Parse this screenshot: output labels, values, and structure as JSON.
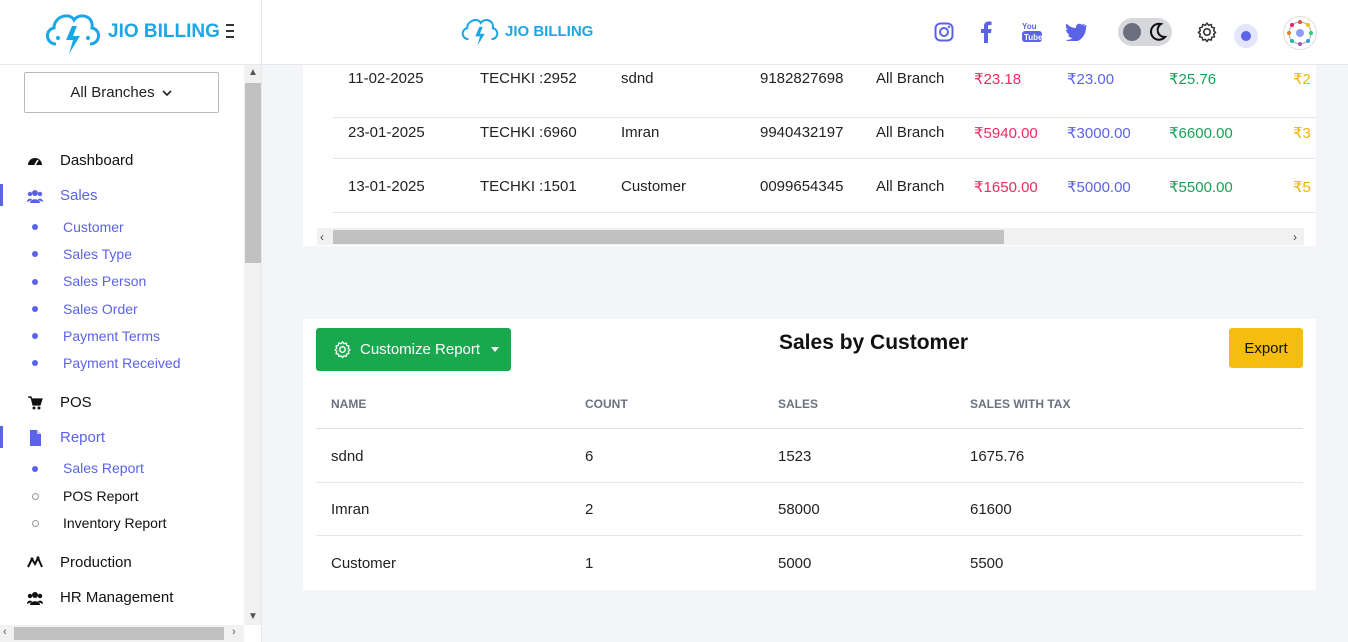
{
  "brand": {
    "name": "JIO BILLING"
  },
  "header": {
    "icons": [
      "instagram-icon",
      "facebook-icon",
      "youtube-icon",
      "twitter-icon"
    ]
  },
  "sidebar": {
    "branch_select": "All Branches",
    "items": [
      {
        "label": "Dashboard",
        "icon": "dashboard-icon",
        "active": false
      },
      {
        "label": "Sales",
        "icon": "users-icon",
        "active": true,
        "children": [
          "Customer",
          "Sales Type",
          "Sales Person",
          "Sales Order",
          "Payment Terms",
          "Payment Received"
        ]
      },
      {
        "label": "POS",
        "icon": "cart-icon",
        "active": false
      },
      {
        "label": "Report",
        "icon": "file-icon",
        "active": true,
        "children": [
          "Sales Report",
          "POS Report",
          "Inventory Report"
        ]
      },
      {
        "label": "Production",
        "icon": "production-icon",
        "active": false
      },
      {
        "label": "HR Management",
        "icon": "team-icon",
        "active": false
      }
    ]
  },
  "top_table": {
    "rows": [
      {
        "date": "11-02-2025",
        "invoice": "TECHKI :2952",
        "customer": "sdnd",
        "phone": "9182827698",
        "branch": "All Branch",
        "amount_red": "₹23.18",
        "amount_blue": "₹23.00",
        "amount_green": "₹25.76",
        "amount_amber": "₹2"
      },
      {
        "date": "23-01-2025",
        "invoice": "TECHKI :6960",
        "customer": "Imran",
        "phone": "9940432197",
        "branch": "All Branch",
        "amount_red": "₹5940.00",
        "amount_blue": "₹3000.00",
        "amount_green": "₹6600.00",
        "amount_amber": "₹3"
      },
      {
        "date": "13-01-2025",
        "invoice": "TECHKI :1501",
        "customer": "Customer",
        "phone": "0099654345",
        "branch": "All Branch",
        "amount_red": "₹1650.00",
        "amount_blue": "₹5000.00",
        "amount_green": "₹5500.00",
        "amount_amber": "₹5"
      }
    ]
  },
  "sales_by_customer": {
    "customize_label": "Customize Report",
    "title": "Sales by Customer",
    "export_label": "Export",
    "columns": [
      "NAME",
      "COUNT",
      "SALES",
      "SALES WITH TAX"
    ],
    "rows": [
      {
        "name": "sdnd",
        "count": "6",
        "sales": "1523",
        "sales_with_tax": "1675.76"
      },
      {
        "name": "Imran",
        "count": "2",
        "sales": "58000",
        "sales_with_tax": "61600"
      },
      {
        "name": "Customer",
        "count": "1",
        "sales": "5000",
        "sales_with_tax": "5500"
      }
    ]
  },
  "colors": {
    "accent": "#5b63e6",
    "brand": "#1aa7e6",
    "success": "#1aa84f",
    "warning": "#f5bd10",
    "danger": "#ee2a60"
  }
}
